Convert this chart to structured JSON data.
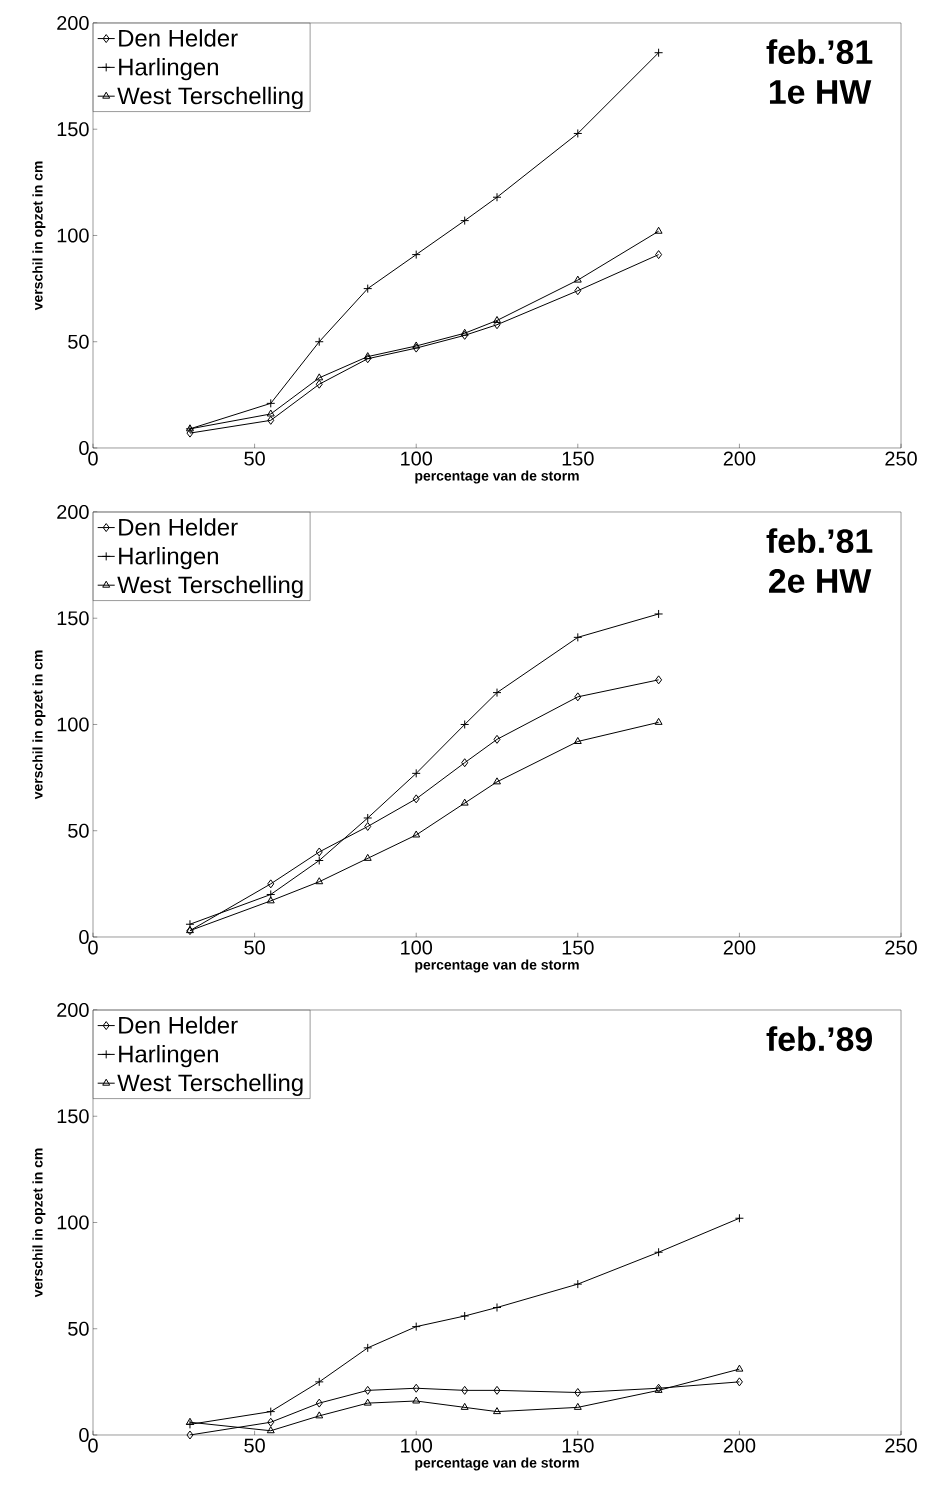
{
  "chart_data": [
    {
      "type": "line",
      "xlabel": "percentage van de storm",
      "ylabel": "verschil in opzet in cm",
      "annotations": [
        "feb.’81",
        "1e HW"
      ],
      "x": [
        30,
        55,
        70,
        85,
        100,
        115,
        125,
        150,
        175
      ],
      "xlim": [
        0,
        250
      ],
      "xticks": [
        0,
        50,
        100,
        150,
        200,
        250
      ],
      "ylim": [
        0,
        200
      ],
      "yticks": [
        0,
        50,
        100,
        150,
        200
      ],
      "legend": "top left",
      "line_style": "solid",
      "series": [
        {
          "name": "Den Helder",
          "color": "#000000",
          "marker": "diamond",
          "values": [
            7,
            13,
            30,
            42,
            47,
            53,
            58,
            74,
            91
          ]
        },
        {
          "name": "Harlingen",
          "color": "#000000",
          "marker": "cross",
          "values": [
            9,
            21,
            50,
            75,
            91,
            107,
            118,
            148,
            186
          ]
        },
        {
          "name": "West Terschelling",
          "color": "#000000",
          "marker": "triangle",
          "values": [
            9,
            16,
            33,
            43,
            48,
            54,
            60,
            79,
            102
          ]
        }
      ]
    },
    {
      "type": "line",
      "xlabel": "percentage van de storm",
      "ylabel": "verschil in opzet in cm",
      "annotations": [
        "feb.’81",
        "2e HW"
      ],
      "x": [
        30,
        55,
        70,
        85,
        100,
        115,
        125,
        150,
        175
      ],
      "xlim": [
        0,
        250
      ],
      "xticks": [
        0,
        50,
        100,
        150,
        200,
        250
      ],
      "ylim": [
        0,
        200
      ],
      "yticks": [
        0,
        50,
        100,
        150,
        200
      ],
      "legend": "top left",
      "line_style": "solid",
      "series": [
        {
          "name": "Den Helder",
          "color": "#000000",
          "marker": "diamond",
          "values": [
            3,
            25,
            40,
            52,
            65,
            82,
            93,
            113,
            121
          ]
        },
        {
          "name": "Harlingen",
          "color": "#000000",
          "marker": "cross",
          "values": [
            6,
            20,
            36,
            56,
            77,
            100,
            115,
            141,
            152
          ]
        },
        {
          "name": "West Terschelling",
          "color": "#000000",
          "marker": "triangle",
          "values": [
            3,
            17,
            26,
            37,
            48,
            63,
            73,
            92,
            101
          ]
        }
      ]
    },
    {
      "type": "line",
      "xlabel": "percentage van de storm",
      "ylabel": "verschil in opzet in cm",
      "annotations": [
        "feb.’89"
      ],
      "x": [
        30,
        55,
        70,
        85,
        100,
        115,
        125,
        150,
        175,
        200
      ],
      "xlim": [
        0,
        250
      ],
      "xticks": [
        0,
        50,
        100,
        150,
        200,
        250
      ],
      "ylim": [
        0,
        200
      ],
      "yticks": [
        0,
        50,
        100,
        150,
        200
      ],
      "legend": "top left",
      "line_style": "solid",
      "series": [
        {
          "name": "Den Helder",
          "color": "#000000",
          "marker": "diamond",
          "values": [
            0,
            6,
            15,
            21,
            22,
            21,
            21,
            20,
            22,
            25
          ]
        },
        {
          "name": "Harlingen",
          "color": "#000000",
          "marker": "cross",
          "values": [
            5,
            11,
            25,
            41,
            51,
            56,
            60,
            71,
            86,
            102
          ]
        },
        {
          "name": "West Terschelling",
          "color": "#000000",
          "marker": "triangle",
          "values": [
            6,
            2,
            9,
            15,
            16,
            13,
            11,
            13,
            21,
            31
          ]
        }
      ]
    }
  ]
}
